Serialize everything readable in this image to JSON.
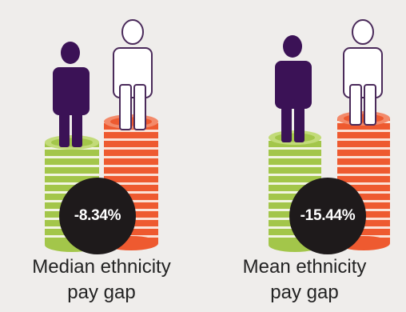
{
  "panels": [
    {
      "value": "-8.34%",
      "label_line1": "Median ethnicity",
      "label_line2": "pay gap"
    },
    {
      "value": "-15.44%",
      "label_line1": "Mean ethnicity",
      "label_line2": "pay gap"
    }
  ],
  "colors": {
    "background": "#efedeb",
    "dark_figure": "#3b1256",
    "light_figure": "#ffffff",
    "green_coins": "#a3c64a",
    "orange_coins": "#ee5a30",
    "badge": "#1e1a1b"
  },
  "icons": [
    "person-icon",
    "coin-stack-icon"
  ]
}
